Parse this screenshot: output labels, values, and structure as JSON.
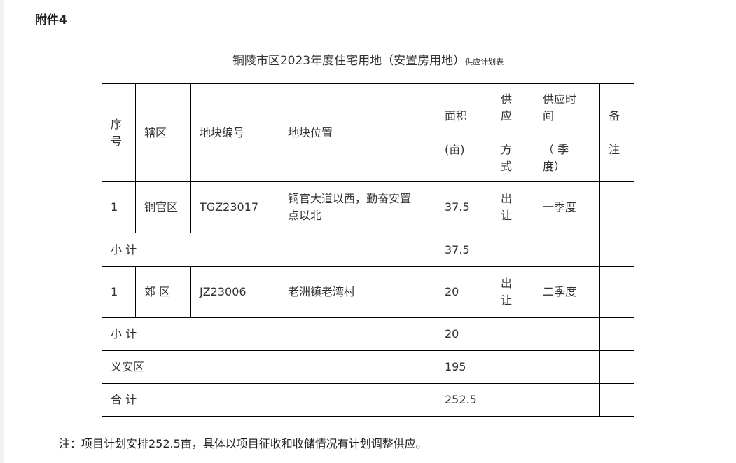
{
  "attachment_label": "附件4",
  "title": {
    "main": "铜陵市区2023年度住宅用地（安置房用地）",
    "suffix": "供应计划表"
  },
  "headers": [
    "序\n号",
    "辖区",
    "地块编号",
    "地块位置",
    "面积\n\n(亩)",
    "供\n应\n\n方\n式",
    "供应时\n间\n\n（       季\n度）",
    "备\n\n注"
  ],
  "rows": [
    {
      "type": "item",
      "no": "1",
      "district": "铜官区",
      "code": "TGZ23017",
      "location": "铜官大道以西，勤奋安置\n点以北",
      "area": "37.5",
      "method": "出\n让",
      "time": "一季度",
      "remark": ""
    },
    {
      "type": "sub",
      "label": "小  计",
      "area": "37.5"
    },
    {
      "type": "item",
      "no": "1",
      "district": "郊  区",
      "code": "JZ23006",
      "location": "老洲镇老湾村",
      "area": "20",
      "method": "出\n让",
      "time": "二季度",
      "remark": ""
    },
    {
      "type": "sub",
      "label": "小  计",
      "area": "20"
    },
    {
      "type": "sub",
      "label": "义安区",
      "area": "195"
    },
    {
      "type": "sub",
      "label": "合  计",
      "area": "252.5"
    }
  ],
  "note": "注：项目计划安排252.5亩，具体以项目征收和收储情况有计划调整供应。"
}
